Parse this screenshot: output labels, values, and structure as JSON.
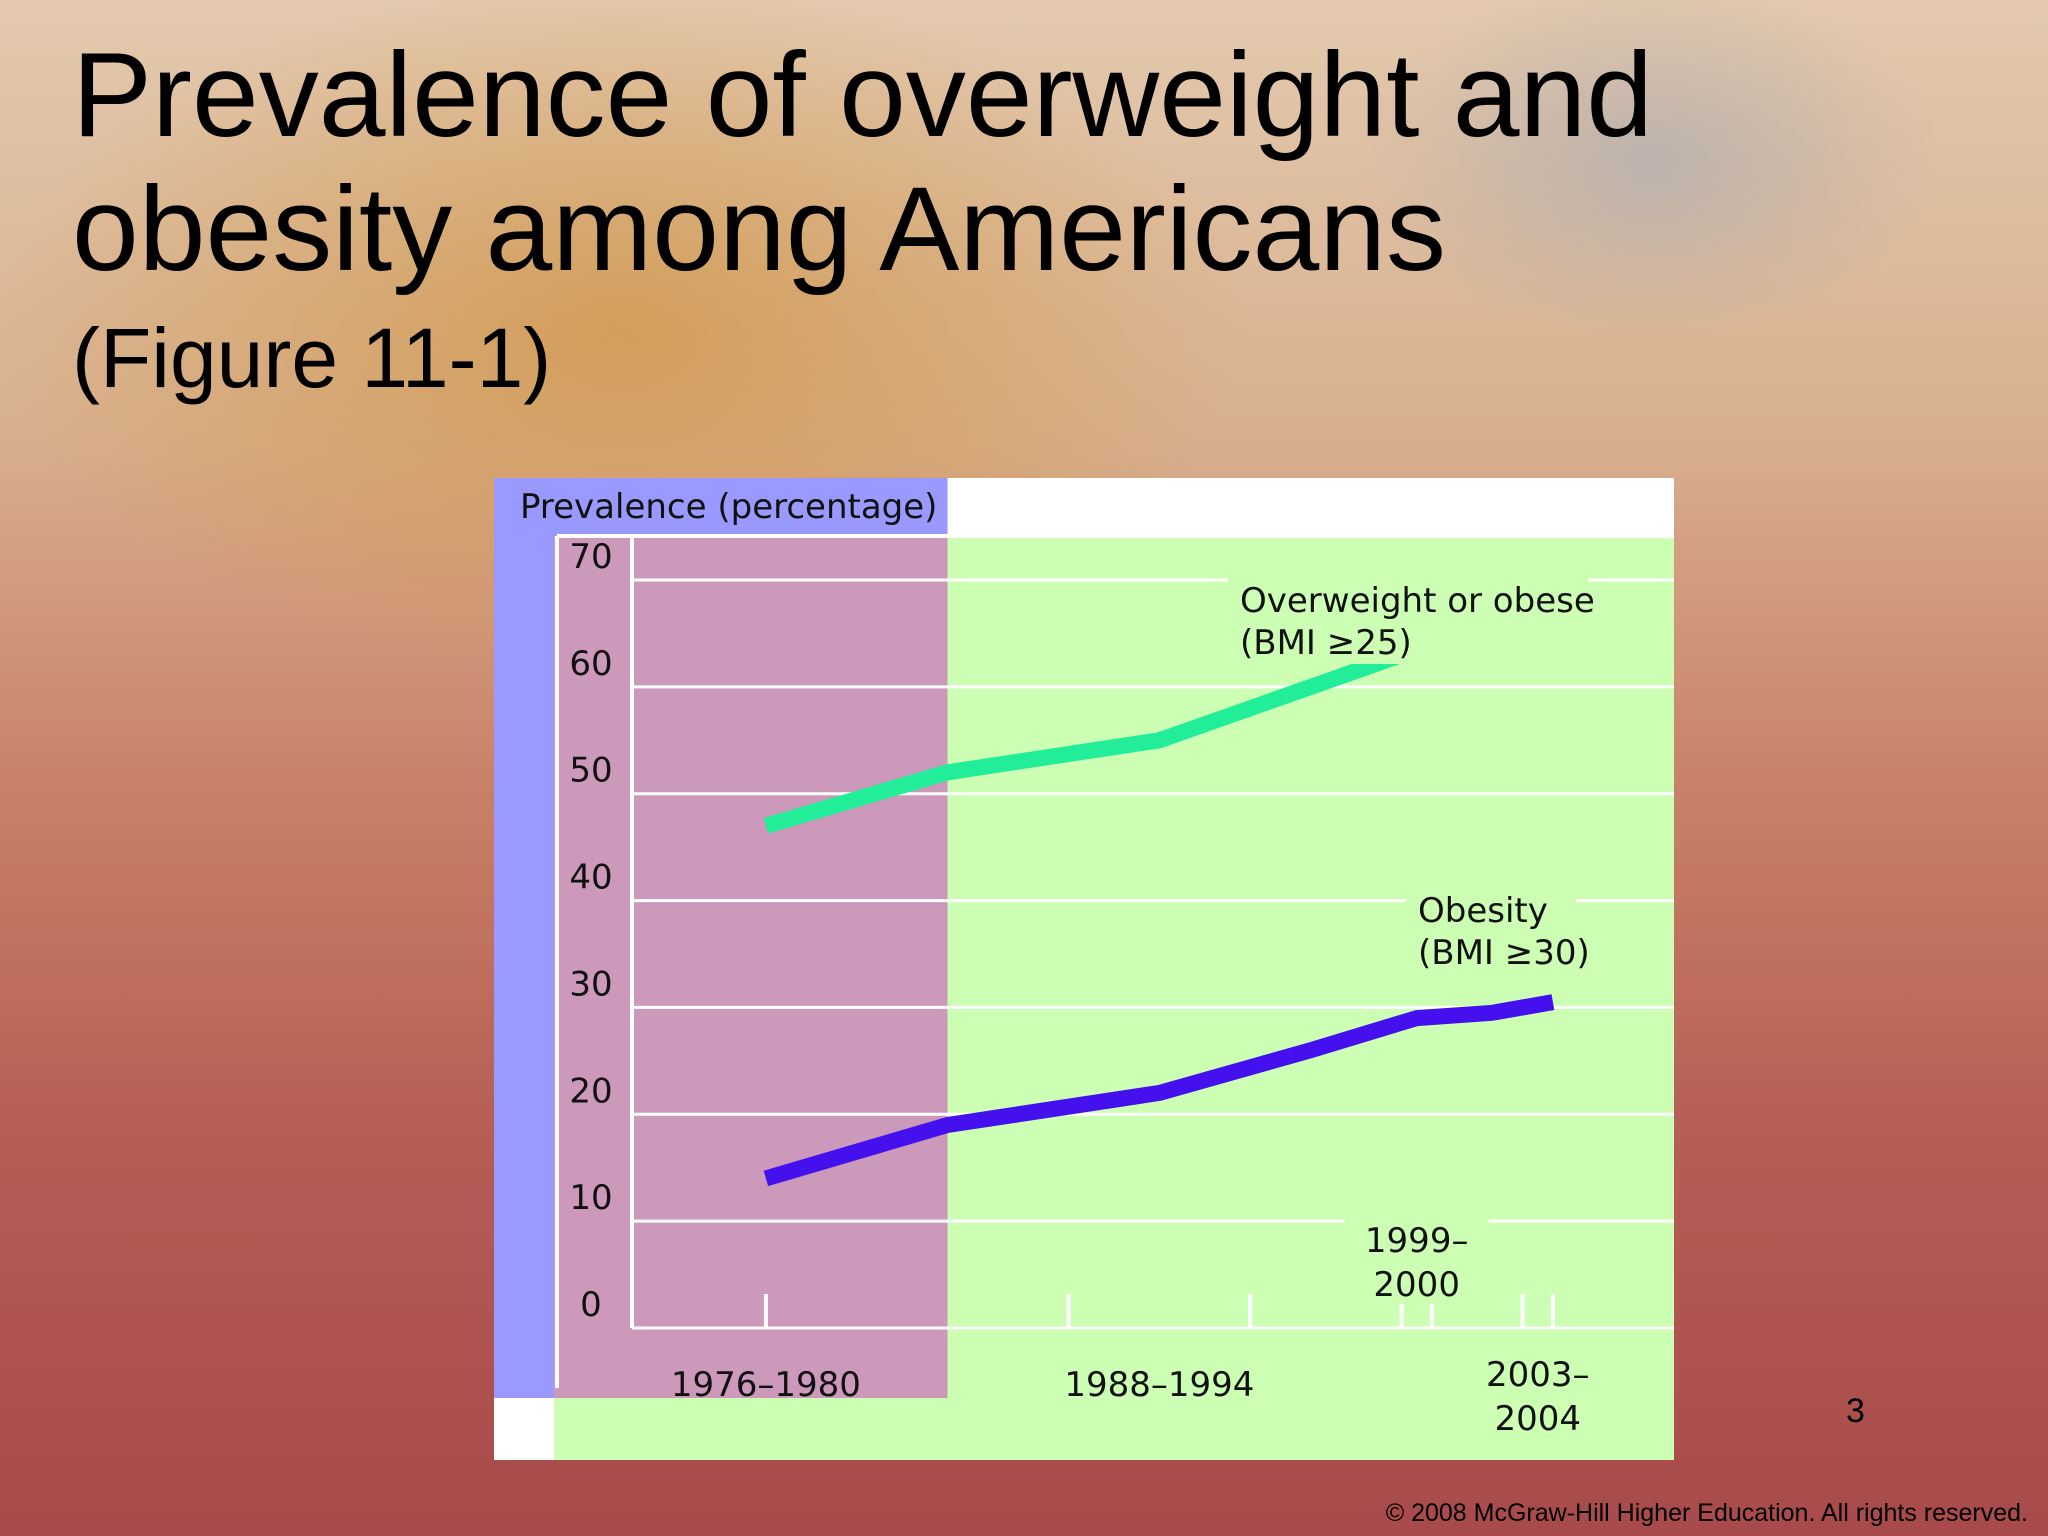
{
  "slide": {
    "title_line1": "Prevalence of overweight and",
    "title_line2": "obesity among Americans",
    "subtitle": "(Figure 11-1)",
    "slide_number": "3",
    "copyright": "© 2008 McGraw-Hill Higher Education. All rights reserved."
  },
  "chart_data": {
    "type": "line",
    "ylabel": "Prevalence (percentage)",
    "ylim": [
      0,
      70
    ],
    "yticks": [
      0,
      10,
      20,
      30,
      40,
      50,
      60,
      70
    ],
    "x_periods": [
      {
        "label": "1976–1980",
        "start": 1976,
        "end": 1980
      },
      {
        "label": "1988–1994",
        "start": 1988,
        "end": 1994
      },
      {
        "label": "1999–2000",
        "start": 1999,
        "end": 2000
      },
      {
        "label": "2003–2004",
        "start": 2003,
        "end": 2004
      }
    ],
    "xlim": [
      1971,
      2008
    ],
    "shaded_region": {
      "from": 1971,
      "to": 1984,
      "color": "#cc99bb"
    },
    "colors": {
      "axis_band": "#9999ff",
      "plot_background": "#ccffb3",
      "gridline": "#ffffff",
      "overweight_line": "#22ee99",
      "obesity_line": "#4411ee"
    },
    "series": [
      {
        "name": "Overweight or obese",
        "criterion": "(BMI ≥25)",
        "x": [
          1978,
          1984,
          1991,
          1996,
          1999.5,
          2002,
          2004
        ],
        "y": [
          47,
          52,
          55,
          60,
          63.5,
          65,
          65
        ]
      },
      {
        "name": "Obesity",
        "criterion": "(BMI ≥30)",
        "x": [
          1978,
          1984,
          1991,
          1996,
          1999.5,
          2002,
          2004
        ],
        "y": [
          14,
          19,
          22,
          26,
          29,
          29.5,
          30.5
        ]
      }
    ]
  }
}
